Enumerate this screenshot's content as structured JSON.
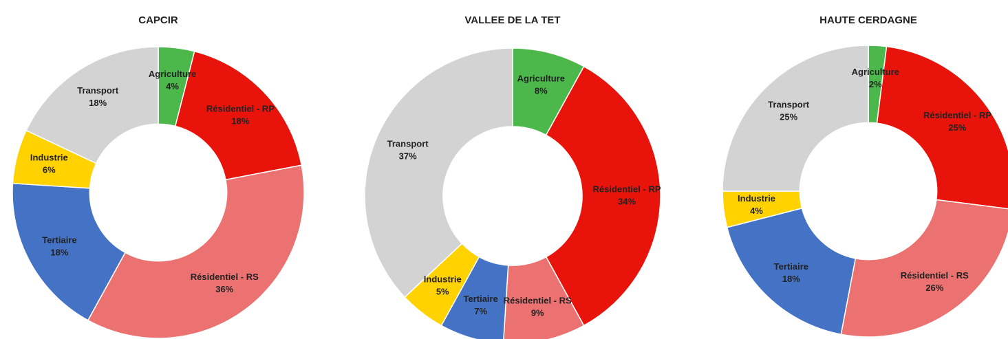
{
  "chart_data": [
    {
      "type": "donut",
      "title": "CAPCIR",
      "categories": [
        "Agriculture",
        "Résidentiel - RP",
        "Résidentiel - RS",
        "Tertiaire",
        "Industrie",
        "Transport"
      ],
      "values": [
        4,
        18,
        36,
        18,
        6,
        18
      ],
      "value_labels": [
        "4%",
        "18%",
        "36%",
        "18%",
        "6%",
        "18%"
      ],
      "colors": [
        "#4cb84c",
        "#e8140c",
        "#ec7272",
        "#4472c4",
        "#ffd200",
        "#d3d3d3"
      ]
    },
    {
      "type": "donut",
      "title": "VALLEE DE LA TET",
      "categories": [
        "Agriculture",
        "Résidentiel - RP",
        "Résidentiel - RS",
        "Tertiaire",
        "Industrie",
        "Transport"
      ],
      "values": [
        8,
        34,
        9,
        7,
        5,
        37
      ],
      "value_labels": [
        "8%",
        "34%",
        "9%",
        "7%",
        "5%",
        "37%"
      ],
      "colors": [
        "#4cb84c",
        "#e8140c",
        "#ec7272",
        "#4472c4",
        "#ffd200",
        "#d3d3d3"
      ]
    },
    {
      "type": "donut",
      "title": "HAUTE CERDAGNE",
      "categories": [
        "Agriculture",
        "Résidentiel - RP",
        "Résidentiel - RS",
        "Tertiaire",
        "Industrie",
        "Transport"
      ],
      "values": [
        2,
        25,
        26,
        18,
        4,
        25
      ],
      "value_labels": [
        "2%",
        "25%",
        "26%",
        "18%",
        "4%",
        "25%"
      ],
      "colors": [
        "#4cb84c",
        "#e8140c",
        "#ec7272",
        "#4472c4",
        "#ffd200",
        "#d3d3d3"
      ]
    }
  ]
}
